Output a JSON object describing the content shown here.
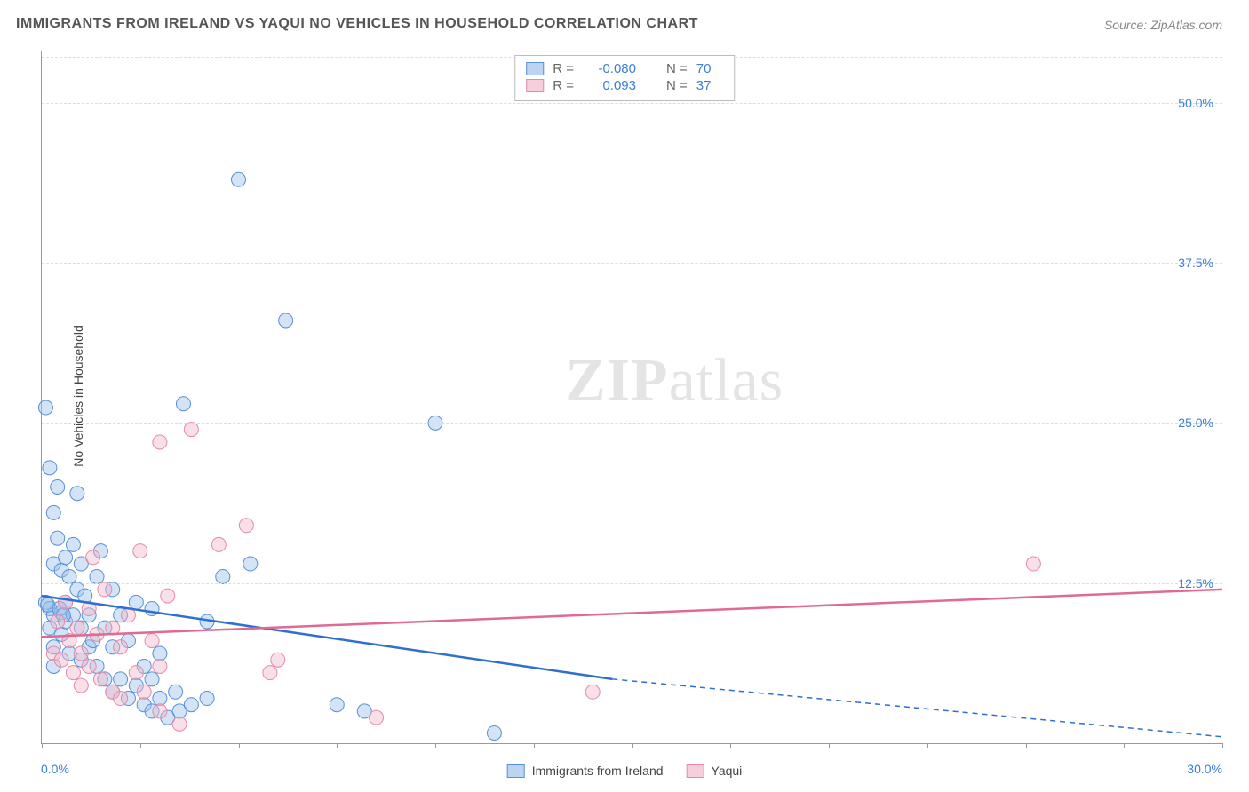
{
  "chart": {
    "type": "scatter",
    "title": "IMMIGRANTS FROM IRELAND VS YAQUI NO VEHICLES IN HOUSEHOLD CORRELATION CHART",
    "source": "Source: ZipAtlas.com",
    "ylabel": "No Vehicles in Household",
    "watermark_a": "ZIP",
    "watermark_b": "atlas",
    "xlim": [
      0,
      30
    ],
    "ylim": [
      0,
      54
    ],
    "yticks": [
      12.5,
      25.0,
      37.5,
      50.0
    ],
    "ytick_labels": [
      "12.5%",
      "25.0%",
      "37.5%",
      "50.0%"
    ],
    "xtick_positions": [
      0,
      2.5,
      5,
      7.5,
      10,
      12.5,
      15,
      17.5,
      20,
      22.5,
      25,
      27.5,
      30
    ],
    "xmin_label": "0.0%",
    "xmax_label": "30.0%",
    "background_color": "#ffffff",
    "grid_color": "#dddddd",
    "axis_color": "#999999",
    "tick_label_color": "#3b7dd8",
    "title_color": "#555555",
    "title_fontsize": 16,
    "label_fontsize": 14,
    "marker_radius": 8,
    "marker_opacity": 0.45,
    "line_width": 2.5,
    "series": [
      {
        "name": "Immigrants from Ireland",
        "color_fill": "#9cc3eb",
        "color_stroke": "#5a8fd6",
        "line_color": "#2e6fd0",
        "R": "-0.080",
        "N": "70",
        "trend": {
          "x1": 0,
          "y1": 11.5,
          "x2_solid": 14.5,
          "y2_solid": 5.0,
          "x2": 30,
          "y2": 0.5,
          "dashed_after_solid": true
        },
        "points": [
          [
            0.1,
            26.2
          ],
          [
            0.1,
            11.0
          ],
          [
            0.2,
            21.5
          ],
          [
            0.2,
            10.5
          ],
          [
            0.2,
            9.0
          ],
          [
            0.3,
            18.0
          ],
          [
            0.3,
            14.0
          ],
          [
            0.3,
            10.0
          ],
          [
            0.3,
            7.5
          ],
          [
            0.3,
            6.0
          ],
          [
            0.4,
            20.0
          ],
          [
            0.4,
            16.0
          ],
          [
            0.5,
            13.5
          ],
          [
            0.5,
            10.2
          ],
          [
            0.5,
            8.5
          ],
          [
            0.6,
            14.5
          ],
          [
            0.6,
            11.0
          ],
          [
            0.6,
            9.5
          ],
          [
            0.7,
            13.0
          ],
          [
            0.7,
            7.0
          ],
          [
            0.8,
            15.5
          ],
          [
            0.8,
            10.0
          ],
          [
            0.9,
            19.5
          ],
          [
            0.9,
            12.0
          ],
          [
            1.0,
            14.0
          ],
          [
            1.0,
            9.0
          ],
          [
            1.0,
            6.5
          ],
          [
            1.1,
            11.5
          ],
          [
            1.2,
            10.0
          ],
          [
            1.2,
            7.5
          ],
          [
            1.3,
            8.0
          ],
          [
            1.4,
            13.0
          ],
          [
            1.4,
            6.0
          ],
          [
            1.5,
            15.0
          ],
          [
            1.6,
            9.0
          ],
          [
            1.6,
            5.0
          ],
          [
            1.8,
            12.0
          ],
          [
            1.8,
            7.5
          ],
          [
            1.8,
            4.0
          ],
          [
            2.0,
            10.0
          ],
          [
            2.0,
            5.0
          ],
          [
            2.2,
            8.0
          ],
          [
            2.2,
            3.5
          ],
          [
            2.4,
            11.0
          ],
          [
            2.4,
            4.5
          ],
          [
            2.6,
            6.0
          ],
          [
            2.6,
            3.0
          ],
          [
            2.8,
            10.5
          ],
          [
            2.8,
            5.0
          ],
          [
            2.8,
            2.5
          ],
          [
            3.0,
            7.0
          ],
          [
            3.0,
            3.5
          ],
          [
            3.2,
            2.0
          ],
          [
            3.4,
            4.0
          ],
          [
            3.5,
            2.5
          ],
          [
            3.6,
            26.5
          ],
          [
            3.8,
            3.0
          ],
          [
            4.2,
            9.5
          ],
          [
            4.2,
            3.5
          ],
          [
            4.6,
            13.0
          ],
          [
            5.0,
            44.0
          ],
          [
            5.3,
            14.0
          ],
          [
            6.2,
            33.0
          ],
          [
            7.5,
            3.0
          ],
          [
            8.2,
            2.5
          ],
          [
            10.0,
            25.0
          ],
          [
            11.5,
            0.8
          ],
          [
            0.15,
            10.8
          ],
          [
            0.45,
            10.5
          ],
          [
            0.55,
            10.0
          ]
        ]
      },
      {
        "name": "Yaqui",
        "color_fill": "#f2b8c9",
        "color_stroke": "#e68aa8",
        "line_color": "#e06a94",
        "R": "0.093",
        "N": "37",
        "trend": {
          "x1": 0,
          "y1": 8.3,
          "x2_solid": 30,
          "y2_solid": 12.0,
          "x2": 30,
          "y2": 12.0,
          "dashed_after_solid": false
        },
        "points": [
          [
            0.3,
            7.0
          ],
          [
            0.4,
            9.5
          ],
          [
            0.5,
            6.5
          ],
          [
            0.6,
            11.0
          ],
          [
            0.7,
            8.0
          ],
          [
            0.8,
            5.5
          ],
          [
            0.9,
            9.0
          ],
          [
            1.0,
            7.0
          ],
          [
            1.0,
            4.5
          ],
          [
            1.2,
            10.5
          ],
          [
            1.2,
            6.0
          ],
          [
            1.4,
            8.5
          ],
          [
            1.5,
            5.0
          ],
          [
            1.6,
            12.0
          ],
          [
            1.8,
            9.0
          ],
          [
            1.8,
            4.0
          ],
          [
            2.0,
            7.5
          ],
          [
            2.0,
            3.5
          ],
          [
            2.2,
            10.0
          ],
          [
            2.4,
            5.5
          ],
          [
            2.5,
            15.0
          ],
          [
            2.6,
            4.0
          ],
          [
            2.8,
            8.0
          ],
          [
            3.0,
            6.0
          ],
          [
            3.0,
            2.5
          ],
          [
            3.0,
            23.5
          ],
          [
            3.2,
            11.5
          ],
          [
            3.5,
            1.5
          ],
          [
            3.8,
            24.5
          ],
          [
            4.5,
            15.5
          ],
          [
            5.2,
            17.0
          ],
          [
            5.8,
            5.5
          ],
          [
            6.0,
            6.5
          ],
          [
            8.5,
            2.0
          ],
          [
            14.0,
            4.0
          ],
          [
            25.2,
            14.0
          ],
          [
            1.3,
            14.5
          ]
        ]
      }
    ],
    "legend_stats_labels": {
      "R": "R =",
      "N": "N ="
    },
    "bottom_legend": [
      {
        "label": "Immigrants from Ireland",
        "swatch": "blue"
      },
      {
        "label": "Yaqui",
        "swatch": "pink"
      }
    ]
  }
}
